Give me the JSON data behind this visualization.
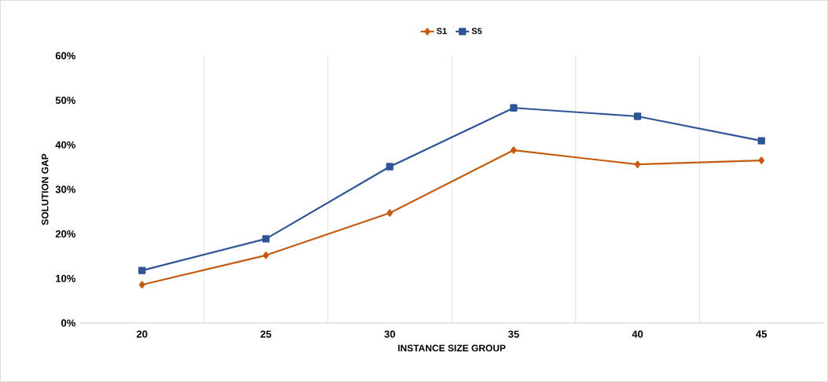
{
  "chart_data": {
    "type": "line",
    "xlabel": "INSTANCE SIZE GROUP",
    "ylabel": "SOLUTION GAP",
    "categories": [
      "20",
      "25",
      "30",
      "35",
      "40",
      "45"
    ],
    "series": [
      {
        "name": "S1",
        "color": "#c55a11",
        "marker": "diamond",
        "values": [
          8.6,
          15.2,
          24.7,
          38.8,
          35.6,
          36.5
        ]
      },
      {
        "name": "S5",
        "color": "#2f5597",
        "marker": "square",
        "values": [
          11.8,
          18.9,
          35.1,
          48.3,
          46.4,
          40.9
        ]
      }
    ],
    "ylim": [
      0,
      60
    ],
    "yticks": [
      {
        "value": 0,
        "label": "0%"
      },
      {
        "value": 10,
        "label": "10%"
      },
      {
        "value": 20,
        "label": "20%"
      },
      {
        "value": 30,
        "label": "30%"
      },
      {
        "value": 40,
        "label": "40%"
      },
      {
        "value": 50,
        "label": "50%"
      },
      {
        "value": 60,
        "label": "60%"
      }
    ],
    "grid": "x",
    "legend": "top",
    "line_style": "solid"
  }
}
